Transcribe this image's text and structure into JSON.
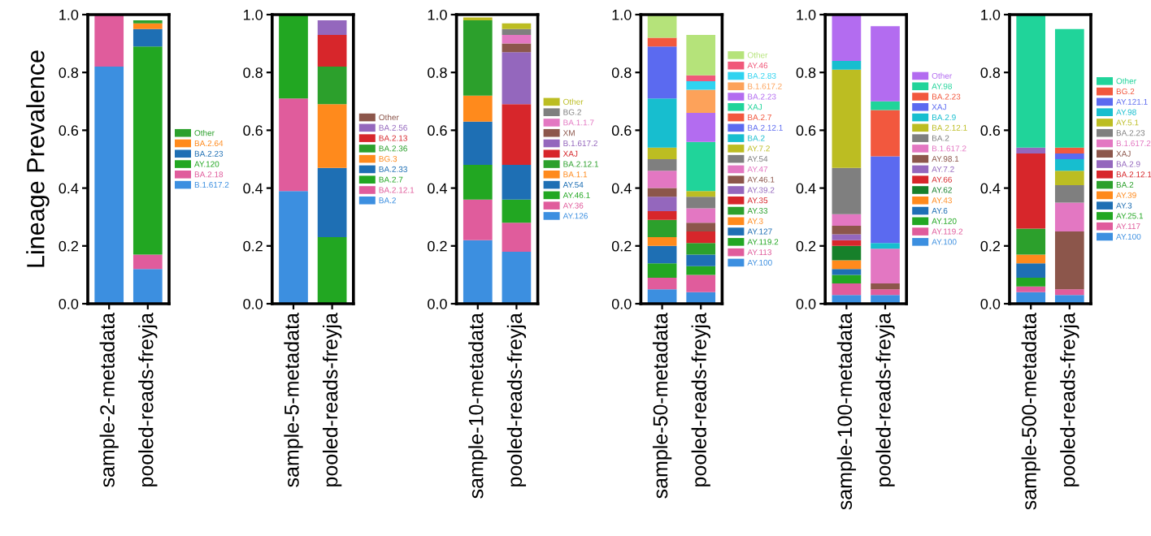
{
  "chart_data": [
    {
      "type": "bar",
      "stacked": true,
      "ylabel": "Lineage Prevalence",
      "categories": [
        "sample-2-metadata",
        "pooled-reads-freyja"
      ],
      "ylim": [
        0,
        1
      ],
      "yticks": [
        {
          "value": 0,
          "label": "0.0"
        },
        {
          "value": 0.2,
          "label": "0.2"
        },
        {
          "value": 0.4,
          "label": "0.4"
        },
        {
          "value": 0.6,
          "label": "0.6"
        },
        {
          "value": 0.8,
          "label": "0.8"
        },
        {
          "value": 1,
          "label": "1.0"
        }
      ],
      "grid": false,
      "legend": "right",
      "series": [
        {
          "name": "B.1.617.2",
          "color": "#3c8fe0",
          "values": [
            0.82,
            0.12
          ]
        },
        {
          "name": "BA.2.18",
          "color": "#e05c9c",
          "values": [
            0.18,
            0.05
          ]
        },
        {
          "name": "AY.120",
          "color": "#22a722",
          "values": [
            null,
            0.72
          ]
        },
        {
          "name": "BA.2.23",
          "color": "#1e6fb4",
          "values": [
            null,
            0.06
          ]
        },
        {
          "name": "BA.2.64",
          "color": "#ff8a1c",
          "values": [
            null,
            0.02
          ]
        },
        {
          "name": "Other",
          "color": "#2ca02c",
          "values": [
            null,
            0.01
          ]
        }
      ]
    },
    {
      "type": "bar",
      "stacked": true,
      "categories": [
        "sample-5-metadata",
        "pooled-reads-freyja"
      ],
      "ylim": [
        0,
        1
      ],
      "yticks": [
        {
          "value": 0,
          "label": "0.0"
        },
        {
          "value": 0.2,
          "label": "0.2"
        },
        {
          "value": 0.4,
          "label": "0.4"
        },
        {
          "value": 0.6,
          "label": "0.6"
        },
        {
          "value": 0.8,
          "label": "0.8"
        },
        {
          "value": 1,
          "label": "1.0"
        }
      ],
      "grid": false,
      "legend": "right",
      "series": [
        {
          "name": "BA.2",
          "color": "#3c8fe0",
          "values": [
            0.39,
            null
          ]
        },
        {
          "name": "BA.2.12.1",
          "color": "#e05c9c",
          "values": [
            0.32,
            null
          ]
        },
        {
          "name": "BA.2.7",
          "color": "#22a722",
          "values": [
            0.29,
            0.23
          ]
        },
        {
          "name": "BA.2.33",
          "color": "#1e6fb4",
          "values": [
            null,
            0.24
          ]
        },
        {
          "name": "BG.3",
          "color": "#ff8a1c",
          "values": [
            null,
            0.22
          ]
        },
        {
          "name": "BA.2.36",
          "color": "#2ca02c",
          "values": [
            null,
            0.13
          ]
        },
        {
          "name": "BA.2.13",
          "color": "#d7262b",
          "values": [
            null,
            0.11
          ]
        },
        {
          "name": "BA.2.56",
          "color": "#9467bd",
          "values": [
            null,
            0.05
          ]
        },
        {
          "name": "Other",
          "color": "#8c564b",
          "values": [
            null,
            null
          ]
        }
      ]
    },
    {
      "type": "bar",
      "stacked": true,
      "categories": [
        "sample-10-metadata",
        "pooled-reads-freyja"
      ],
      "ylim": [
        0,
        1
      ],
      "yticks": [
        {
          "value": 0,
          "label": "0.0"
        },
        {
          "value": 0.2,
          "label": "0.2"
        },
        {
          "value": 0.4,
          "label": "0.4"
        },
        {
          "value": 0.6,
          "label": "0.6"
        },
        {
          "value": 0.8,
          "label": "0.8"
        },
        {
          "value": 1,
          "label": "1.0"
        }
      ],
      "grid": false,
      "legend": "right",
      "series": [
        {
          "name": "AY.126",
          "color": "#3c8fe0",
          "values": [
            0.22,
            0.18
          ]
        },
        {
          "name": "AY.36",
          "color": "#e05c9c",
          "values": [
            0.14,
            0.1
          ]
        },
        {
          "name": "AY.46.1",
          "color": "#22a722",
          "values": [
            0.12,
            0.08
          ]
        },
        {
          "name": "AY.54",
          "color": "#1e6fb4",
          "values": [
            0.15,
            0.12
          ]
        },
        {
          "name": "BA.1.1",
          "color": "#ff8a1c",
          "values": [
            0.09,
            null
          ]
        },
        {
          "name": "BA.2.12.1",
          "color": "#2ca02c",
          "values": [
            0.26,
            null
          ]
        },
        {
          "name": "XAJ",
          "color": "#d7262b",
          "values": [
            null,
            0.21
          ]
        },
        {
          "name": "B.1.617.2",
          "color": "#9467bd",
          "values": [
            null,
            0.18
          ]
        },
        {
          "name": "XM",
          "color": "#8c564b",
          "values": [
            null,
            0.03
          ]
        },
        {
          "name": "BA.1.1.7",
          "color": "#e377c2",
          "values": [
            null,
            0.03
          ]
        },
        {
          "name": "BG.2",
          "color": "#7f7f7f",
          "values": [
            null,
            0.02
          ]
        },
        {
          "name": "Other",
          "color": "#bcbd22",
          "values": [
            0.01,
            0.02
          ]
        }
      ]
    },
    {
      "type": "bar",
      "stacked": true,
      "categories": [
        "sample-50-metadata",
        "pooled-reads-freyja"
      ],
      "ylim": [
        0,
        1
      ],
      "yticks": [
        {
          "value": 0,
          "label": "0.0"
        },
        {
          "value": 0.2,
          "label": "0.2"
        },
        {
          "value": 0.4,
          "label": "0.4"
        },
        {
          "value": 0.6,
          "label": "0.6"
        },
        {
          "value": 0.8,
          "label": "0.8"
        },
        {
          "value": 1,
          "label": "1.0"
        }
      ],
      "grid": false,
      "legend": "right",
      "series": [
        {
          "name": "AY.100",
          "color": "#3c8fe0",
          "values": [
            0.05,
            0.04
          ]
        },
        {
          "name": "AY.113",
          "color": "#e05c9c",
          "values": [
            0.04,
            0.06
          ]
        },
        {
          "name": "AY.119.2",
          "color": "#22a722",
          "values": [
            0.05,
            0.03
          ]
        },
        {
          "name": "AY.127",
          "color": "#1e6fb4",
          "values": [
            0.06,
            0.04
          ]
        },
        {
          "name": "AY.3",
          "color": "#ff8a1c",
          "values": [
            0.03,
            null
          ]
        },
        {
          "name": "AY.33",
          "color": "#2ca02c",
          "values": [
            0.06,
            0.04
          ]
        },
        {
          "name": "AY.35",
          "color": "#d7262b",
          "values": [
            0.03,
            0.04
          ]
        },
        {
          "name": "AY.39.2",
          "color": "#9467bd",
          "values": [
            0.05,
            null
          ]
        },
        {
          "name": "AY.46.1",
          "color": "#8c564b",
          "values": [
            0.03,
            0.03
          ]
        },
        {
          "name": "AY.47",
          "color": "#e377c2",
          "values": [
            0.06,
            0.05
          ]
        },
        {
          "name": "AY.54",
          "color": "#7f7f7f",
          "values": [
            0.04,
            0.04
          ]
        },
        {
          "name": "AY.7.2",
          "color": "#bcbd22",
          "values": [
            0.04,
            0.02
          ]
        },
        {
          "name": "BA.2",
          "color": "#17becf",
          "values": [
            0.17,
            null
          ]
        },
        {
          "name": "BA.2.12.1",
          "color": "#5b6af0",
          "values": [
            0.18,
            null
          ]
        },
        {
          "name": "BA.2.7",
          "color": "#f2583e",
          "values": [
            0.03,
            null
          ]
        },
        {
          "name": "XAJ",
          "color": "#20d49a",
          "values": [
            null,
            0.17
          ]
        },
        {
          "name": "BA.2.23",
          "color": "#b36cf0",
          "values": [
            null,
            0.1
          ]
        },
        {
          "name": "B.1.617.2",
          "color": "#fda25a",
          "values": [
            null,
            0.08
          ]
        },
        {
          "name": "BA.2.83",
          "color": "#2fd3f0",
          "values": [
            null,
            0.03
          ]
        },
        {
          "name": "AY.46",
          "color": "#f0587a",
          "values": [
            null,
            0.02
          ]
        },
        {
          "name": "Other",
          "color": "#b5e37a",
          "values": [
            0.08,
            0.14
          ]
        }
      ]
    },
    {
      "type": "bar",
      "stacked": true,
      "categories": [
        "sample-100-metadata",
        "pooled-reads-freyja"
      ],
      "ylim": [
        0,
        1
      ],
      "yticks": [
        {
          "value": 0,
          "label": "0.0"
        },
        {
          "value": 0.2,
          "label": "0.2"
        },
        {
          "value": 0.4,
          "label": "0.4"
        },
        {
          "value": 0.6,
          "label": "0.6"
        },
        {
          "value": 0.8,
          "label": "0.8"
        },
        {
          "value": 1,
          "label": "1.0"
        }
      ],
      "grid": false,
      "legend": "right",
      "series": [
        {
          "name": "AY.100",
          "color": "#3c8fe0",
          "values": [
            0.03,
            0.03
          ]
        },
        {
          "name": "AY.119.2",
          "color": "#e05c9c",
          "values": [
            0.04,
            0.02
          ]
        },
        {
          "name": "AY.120",
          "color": "#22a722",
          "values": [
            0.03,
            null
          ]
        },
        {
          "name": "AY.6",
          "color": "#1e6fb4",
          "values": [
            0.02,
            null
          ]
        },
        {
          "name": "AY.43",
          "color": "#ff8a1c",
          "values": [
            0.03,
            null
          ]
        },
        {
          "name": "AY.62",
          "color": "#16802a",
          "values": [
            0.05,
            null
          ]
        },
        {
          "name": "AY.66",
          "color": "#d7262b",
          "values": [
            0.02,
            null
          ]
        },
        {
          "name": "AY.7.2",
          "color": "#9467bd",
          "values": [
            0.02,
            null
          ]
        },
        {
          "name": "AY.98.1",
          "color": "#8c564b",
          "values": [
            0.03,
            0.02
          ]
        },
        {
          "name": "B.1.617.2",
          "color": "#e377c2",
          "values": [
            0.04,
            0.12
          ]
        },
        {
          "name": "BA.2",
          "color": "#7f7f7f",
          "values": [
            0.16,
            null
          ]
        },
        {
          "name": "BA.2.12.1",
          "color": "#bcbd22",
          "values": [
            0.34,
            null
          ]
        },
        {
          "name": "BA.2.9",
          "color": "#17becf",
          "values": [
            0.03,
            0.02
          ]
        },
        {
          "name": "XAJ",
          "color": "#5b6af0",
          "values": [
            null,
            0.3
          ]
        },
        {
          "name": "BA.2.23",
          "color": "#f2583e",
          "values": [
            null,
            0.16
          ]
        },
        {
          "name": "AY.98",
          "color": "#20d49a",
          "values": [
            null,
            0.03
          ]
        },
        {
          "name": "Other",
          "color": "#b36cf0",
          "values": [
            0.16,
            0.26
          ]
        }
      ]
    },
    {
      "type": "bar",
      "stacked": true,
      "categories": [
        "sample-500-metadata",
        "pooled-reads-freyja"
      ],
      "ylim": [
        0,
        1
      ],
      "yticks": [
        {
          "value": 0,
          "label": "0.0"
        },
        {
          "value": 0.2,
          "label": "0.2"
        },
        {
          "value": 0.4,
          "label": "0.4"
        },
        {
          "value": 0.6,
          "label": "0.6"
        },
        {
          "value": 0.8,
          "label": "0.8"
        },
        {
          "value": 1,
          "label": "1.0"
        }
      ],
      "grid": false,
      "legend": "right",
      "series": [
        {
          "name": "AY.100",
          "color": "#3c8fe0",
          "values": [
            0.04,
            0.03
          ]
        },
        {
          "name": "AY.117",
          "color": "#e05c9c",
          "values": [
            0.02,
            0.02
          ]
        },
        {
          "name": "AY.25.1",
          "color": "#22a722",
          "values": [
            0.03,
            null
          ]
        },
        {
          "name": "AY.3",
          "color": "#1e6fb4",
          "values": [
            0.05,
            null
          ]
        },
        {
          "name": "AY.39",
          "color": "#ff8a1c",
          "values": [
            0.03,
            null
          ]
        },
        {
          "name": "BA.2",
          "color": "#2ca02c",
          "values": [
            0.09,
            null
          ]
        },
        {
          "name": "BA.2.12.1",
          "color": "#d7262b",
          "values": [
            0.26,
            null
          ]
        },
        {
          "name": "BA.2.9",
          "color": "#9467bd",
          "values": [
            0.02,
            null
          ]
        },
        {
          "name": "XAJ",
          "color": "#8c564b",
          "values": [
            null,
            0.2
          ]
        },
        {
          "name": "B.1.617.2",
          "color": "#e377c2",
          "values": [
            null,
            0.1
          ]
        },
        {
          "name": "BA.2.23",
          "color": "#7f7f7f",
          "values": [
            null,
            0.06
          ]
        },
        {
          "name": "AY.5.1",
          "color": "#bcbd22",
          "values": [
            null,
            0.05
          ]
        },
        {
          "name": "AY.98",
          "color": "#17becf",
          "values": [
            null,
            0.04
          ]
        },
        {
          "name": "AY.121.1",
          "color": "#5b6af0",
          "values": [
            null,
            0.02
          ]
        },
        {
          "name": "BG.2",
          "color": "#f2583e",
          "values": [
            null,
            0.02
          ]
        },
        {
          "name": "Other",
          "color": "#20d49a",
          "values": [
            0.46,
            0.41
          ]
        }
      ]
    }
  ]
}
